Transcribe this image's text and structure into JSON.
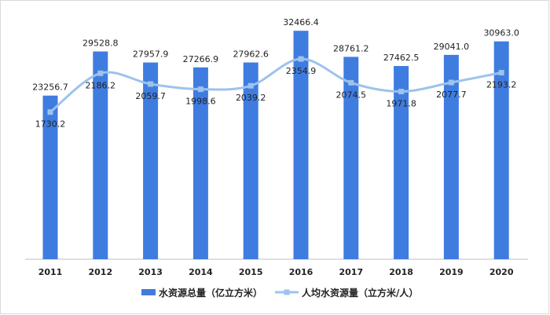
{
  "chart_data": {
    "type": "bar",
    "categories": [
      "2011",
      "2012",
      "2013",
      "2014",
      "2015",
      "2016",
      "2017",
      "2018",
      "2019",
      "2020"
    ],
    "series": [
      {
        "name": "水资源总量（亿立方米）",
        "type": "bar",
        "color": "#3f7ce0",
        "values": [
          23256.7,
          29528.8,
          27957.9,
          27266.9,
          27962.6,
          32466.4,
          28761.2,
          27462.5,
          29041.0,
          30963.0
        ],
        "labels": [
          "23256.7",
          "29528.8",
          "27957.9",
          "27266.9",
          "27962.6",
          "32466.4",
          "28761.2",
          "27462.5",
          "29041.0",
          "30963.0"
        ]
      },
      {
        "name": "人均水资源量（立方米/人）",
        "type": "line",
        "color": "#9dc3ec",
        "values": [
          1730.2,
          2186.2,
          2059.7,
          1998.6,
          2039.2,
          2354.9,
          2074.5,
          1971.8,
          2077.7,
          2193.2
        ],
        "labels": [
          "1730.2",
          "2186.2",
          "2059.7",
          "1998.6",
          "2039.2",
          "2354.9",
          "2074.5",
          "1971.8",
          "2077.7",
          "2193.2"
        ]
      }
    ],
    "ylim_bar": [
      0,
      35000
    ],
    "ylim_line": [
      0,
      2800
    ],
    "legend_position": "bottom",
    "grid": false
  }
}
